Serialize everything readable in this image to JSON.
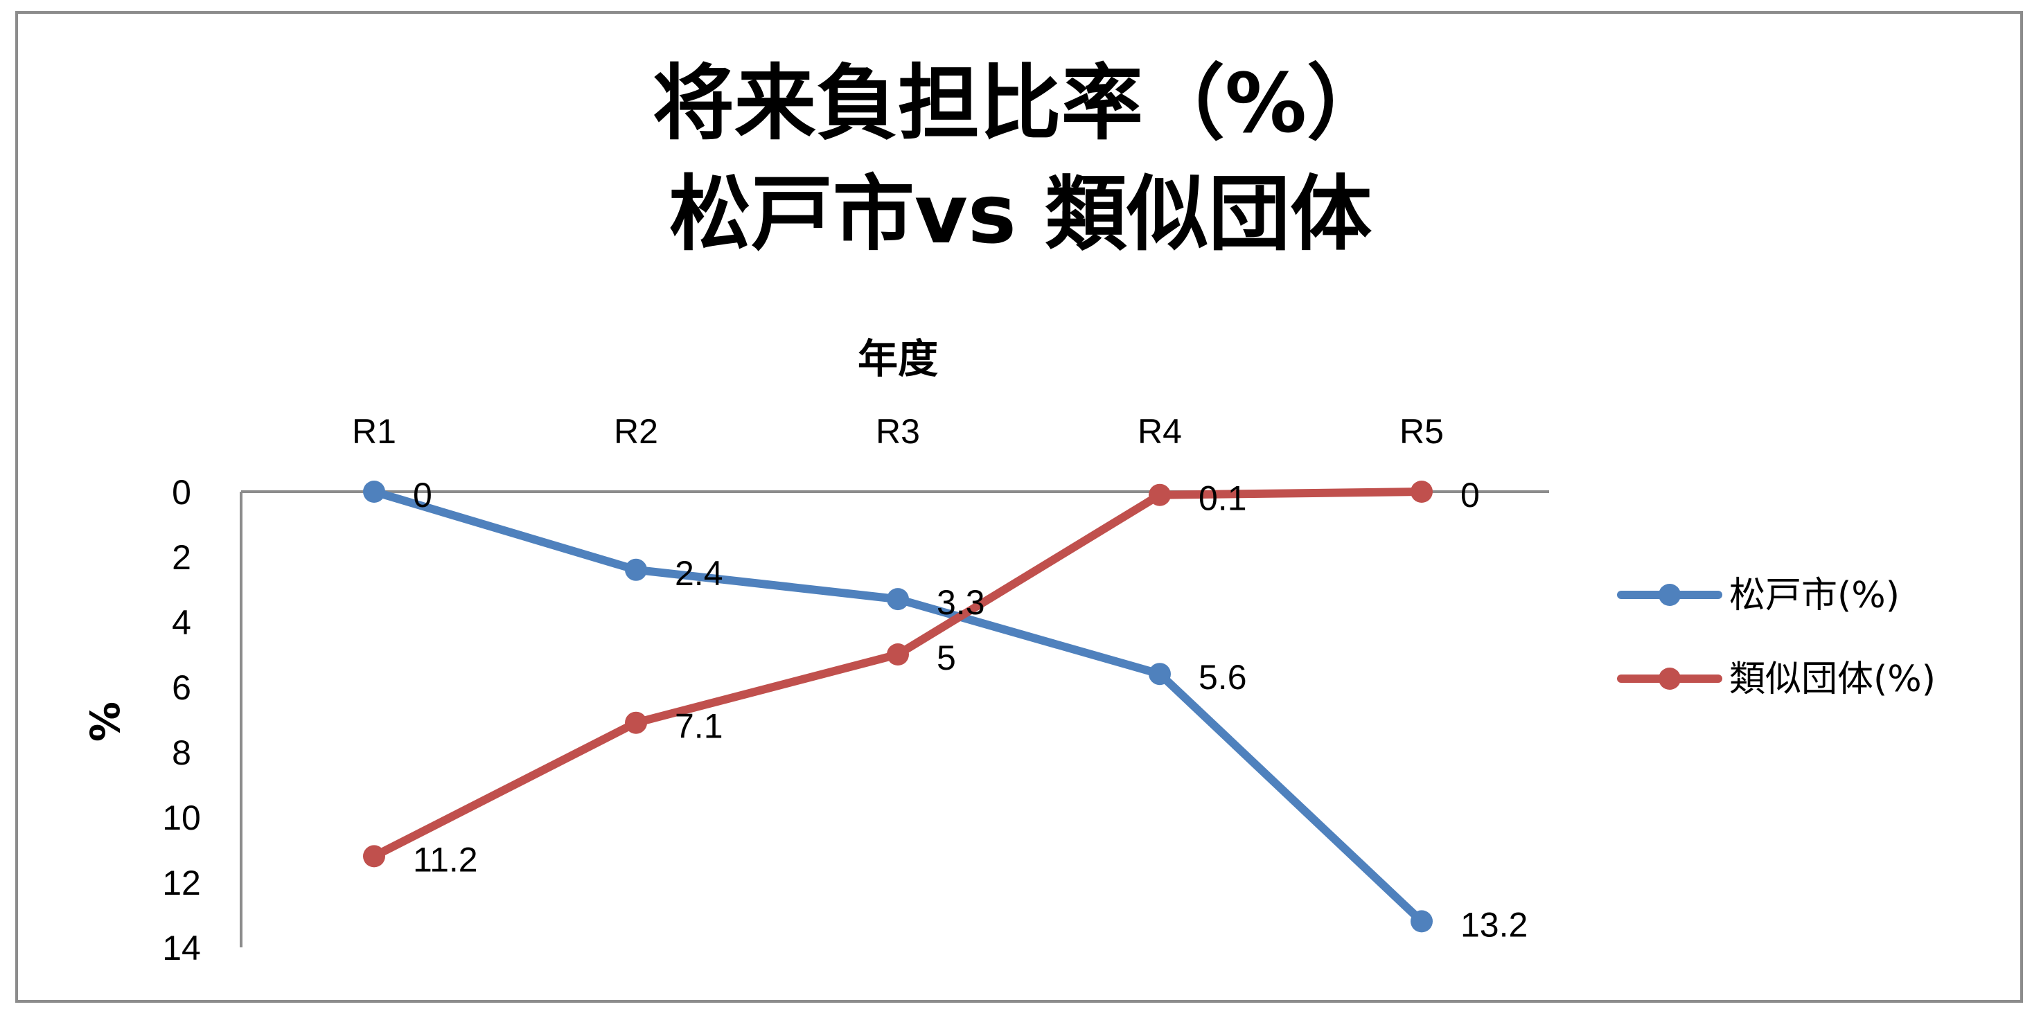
{
  "chart_data": {
    "type": "line",
    "title_line1": "将来負担比率（%）",
    "title_line2": "松戸市vs 類似団体",
    "xlabel": "年度",
    "ylabel": "%",
    "categories": [
      "R1",
      "R2",
      "R3",
      "R4",
      "R5"
    ],
    "y_ticks": [
      "0",
      "2",
      "4",
      "6",
      "8",
      "10",
      "12",
      "14"
    ],
    "ylim": [
      0,
      14
    ],
    "y_reversed": true,
    "x_axis_position": "top",
    "grid": false,
    "legend_position": "right",
    "series": [
      {
        "name": "松戸市(%)",
        "color": "#4f81bd",
        "values": [
          0,
          2.4,
          3.3,
          5.6,
          13.2
        ],
        "labels": [
          "0",
          "2.4",
          "3.3",
          "5.6",
          "13.2"
        ]
      },
      {
        "name": "類似団体(%)",
        "color": "#c0504d",
        "values": [
          11.2,
          7.1,
          5,
          0.1,
          0
        ],
        "labels": [
          "11.2",
          "7.1",
          "5",
          "0.1",
          "0"
        ]
      }
    ]
  }
}
